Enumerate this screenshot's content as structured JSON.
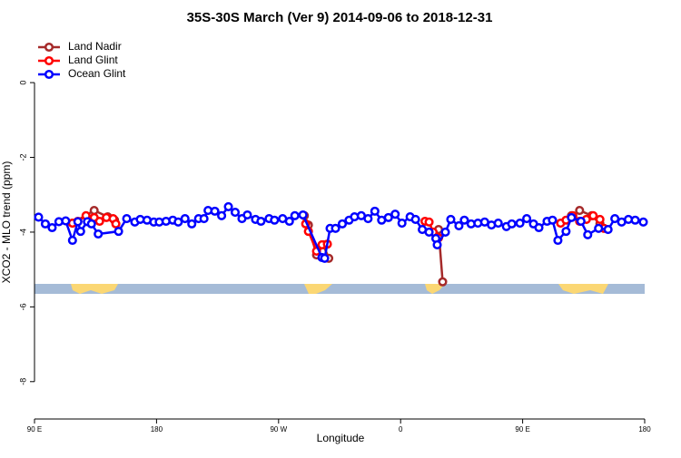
{
  "chart_data": {
    "type": "line",
    "title": "35S-30S March (Ver 9)   2014-09-06 to 2018-12-31",
    "x_label": "Longitude",
    "y_label": "XCO2 - MLO trend (ppm)",
    "xlim": [
      90,
      540
    ],
    "xticks": [
      {
        "value": 90,
        "label": "90 E"
      },
      {
        "value": 180,
        "label": "180"
      },
      {
        "value": 270,
        "label": "90 W"
      },
      {
        "value": 360,
        "label": "0"
      },
      {
        "value": 450,
        "label": "90 E"
      },
      {
        "value": 540,
        "label": "180"
      }
    ],
    "ylim": [
      -9,
      1.24
    ],
    "yticks": [
      0,
      -2,
      -4,
      -6,
      -8
    ],
    "legend": "topleft",
    "series": [
      {
        "name": "Land Nadir",
        "color": "#a52a2a",
        "x": [
          118,
          134,
          144,
          149,
          220,
          289,
          292,
          298,
          303,
          307,
          350,
          388,
          391,
          450,
          486,
          492,
          501,
          507
        ],
        "values": [
          -3.76,
          -3.42,
          -3.59,
          -3.68,
          null,
          -3.56,
          -3.81,
          -4.61,
          -4.34,
          -4.7,
          null,
          -3.93,
          -5.33,
          null,
          -3.56,
          -3.42,
          -3.56,
          -3.78
        ]
      },
      {
        "name": "Land Glint",
        "color": "#ff0000",
        "x": [
          118,
          122,
          128,
          134,
          138,
          143,
          148,
          150,
          220,
          290,
          292,
          298,
          302,
          306,
          350,
          378,
          381,
          384,
          388,
          450,
          478,
          482,
          487,
          492,
          497,
          502,
          507,
          510
        ],
        "values": [
          -3.76,
          -3.71,
          -3.56,
          -3.61,
          -3.71,
          -3.61,
          -3.64,
          -3.78,
          null,
          -3.78,
          -3.98,
          -4.51,
          -4.34,
          -4.32,
          null,
          -3.71,
          -3.73,
          -4.0,
          -4.15,
          null,
          -3.76,
          -3.68,
          -3.56,
          -3.71,
          -3.66,
          -3.56,
          -3.66,
          -3.9
        ]
      },
      {
        "name": "Ocean Glint",
        "color": "#0000ff",
        "x": [
          93,
          98,
          103,
          108,
          113,
          118,
          122,
          124,
          129,
          132,
          137,
          152,
          158,
          164,
          168,
          173,
          178,
          182,
          187,
          192,
          196,
          201,
          206,
          211,
          215,
          218,
          223,
          228,
          233,
          238,
          243,
          247,
          253,
          257,
          263,
          267,
          273,
          278,
          282,
          288,
          302,
          304,
          308,
          312,
          317,
          322,
          326,
          331,
          336,
          341,
          346,
          351,
          356,
          361,
          367,
          371,
          376,
          381,
          386,
          387,
          393,
          397,
          403,
          407,
          412,
          417,
          422,
          427,
          432,
          438,
          442,
          448,
          453,
          458,
          462,
          468,
          472,
          476,
          482,
          486,
          493,
          498,
          506,
          513,
          518,
          523,
          528,
          533,
          539
        ],
        "values": [
          -3.6,
          -3.78,
          -3.88,
          -3.72,
          -3.7,
          -4.22,
          -3.72,
          -3.98,
          -3.72,
          -3.78,
          -4.05,
          -3.98,
          -3.64,
          -3.73,
          -3.66,
          -3.68,
          -3.73,
          -3.73,
          -3.71,
          -3.68,
          -3.73,
          -3.64,
          -3.78,
          -3.64,
          -3.64,
          -3.42,
          -3.44,
          -3.56,
          -3.32,
          -3.47,
          -3.64,
          -3.54,
          -3.66,
          -3.71,
          -3.64,
          -3.68,
          -3.64,
          -3.71,
          -3.56,
          -3.54,
          -4.68,
          -4.7,
          -3.9,
          -3.9,
          -3.78,
          -3.68,
          -3.59,
          -3.56,
          -3.64,
          -3.44,
          -3.68,
          -3.61,
          -3.52,
          -3.76,
          -3.59,
          -3.66,
          -3.93,
          -4.0,
          -4.17,
          -4.34,
          -4.0,
          -3.66,
          -3.83,
          -3.68,
          -3.78,
          -3.76,
          -3.73,
          -3.81,
          -3.76,
          -3.85,
          -3.78,
          -3.76,
          -3.64,
          -3.78,
          -3.88,
          -3.71,
          -3.68,
          -4.22,
          -3.98,
          -3.61,
          -3.71,
          -4.07,
          -3.9,
          -3.93,
          -3.64,
          -3.73,
          -3.66,
          -3.68,
          -3.73
        ]
      }
    ]
  }
}
